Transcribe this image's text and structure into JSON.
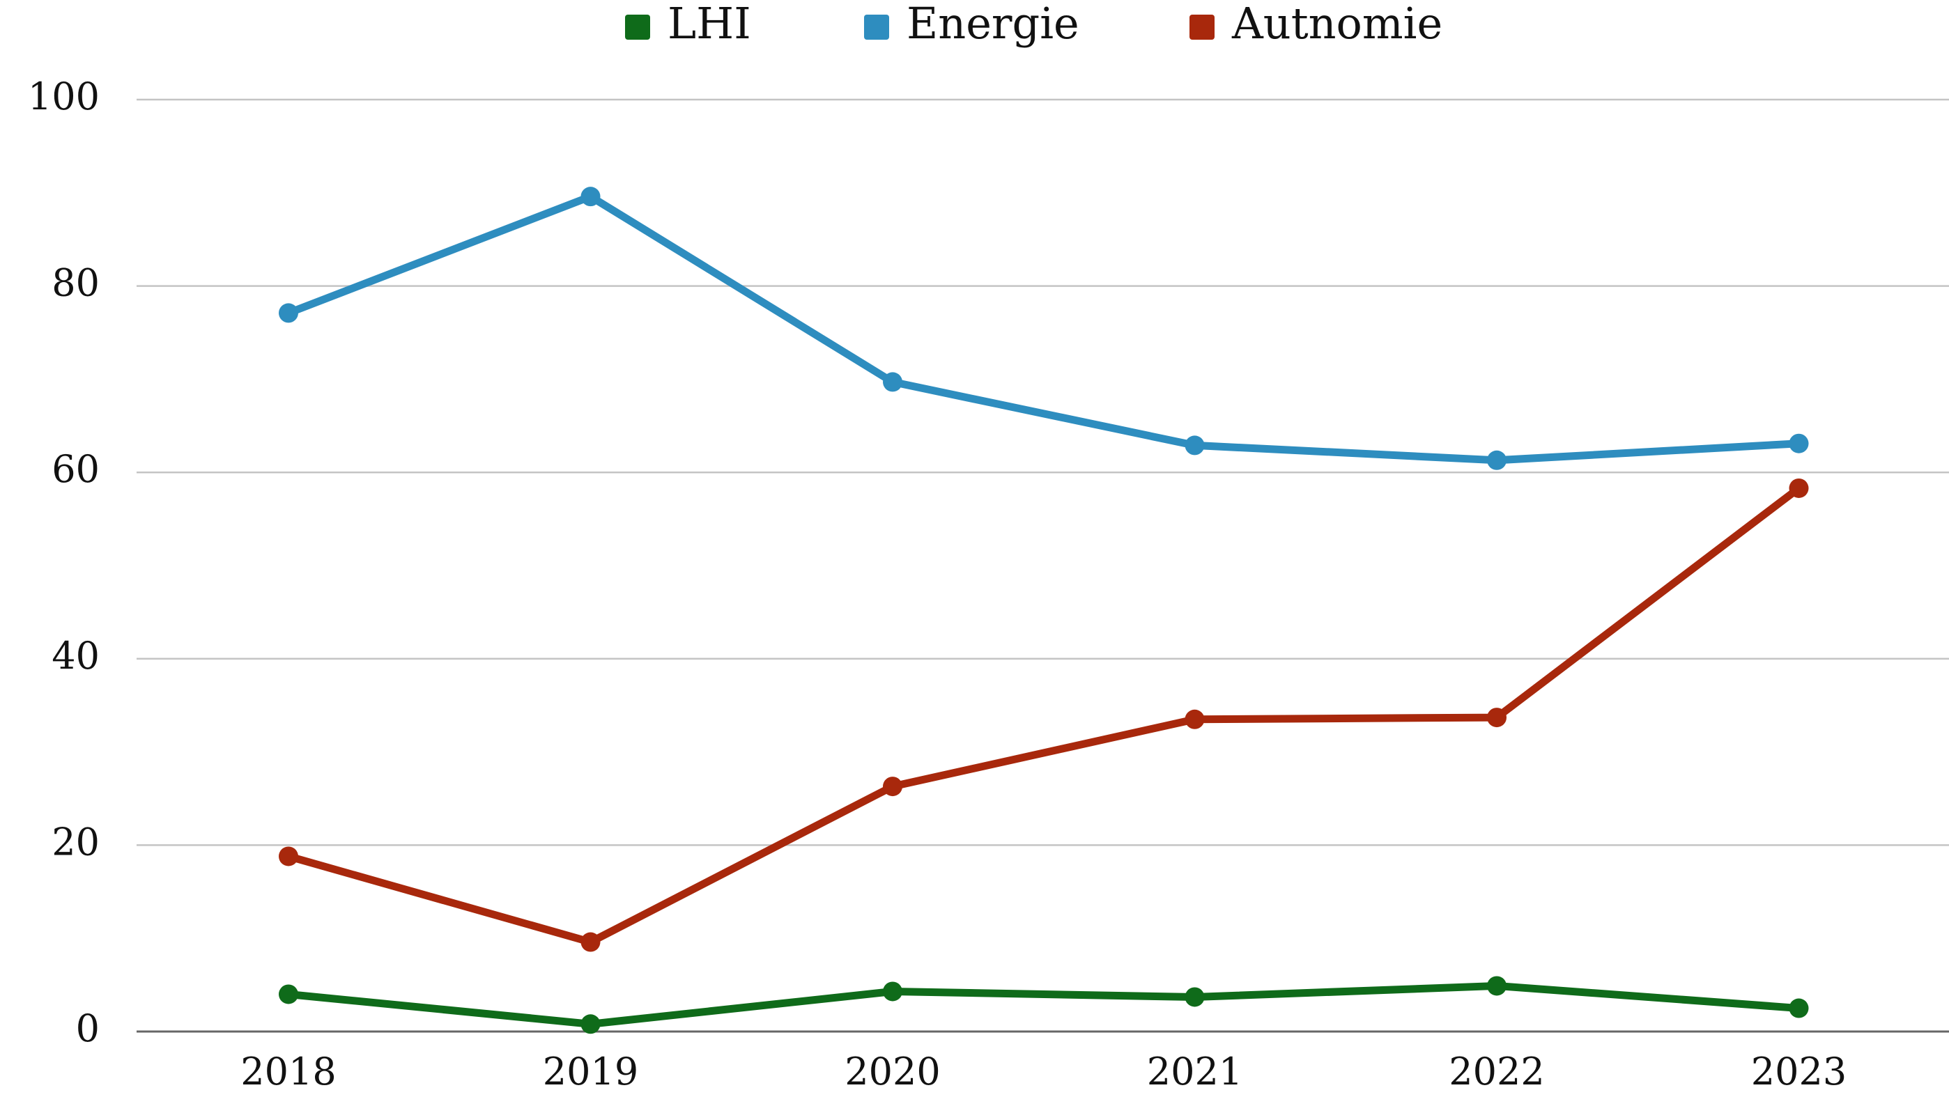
{
  "chart_data": {
    "type": "line",
    "categories": [
      "2018",
      "2019",
      "2020",
      "2021",
      "2022",
      "2023"
    ],
    "series": [
      {
        "name": "LHI",
        "color": "#0f6b1a",
        "values": [
          4.0,
          0.8,
          4.3,
          3.7,
          4.9,
          2.5
        ]
      },
      {
        "name": "Energie",
        "color": "#2e8dbf",
        "values": [
          77.1,
          89.6,
          69.7,
          62.9,
          61.3,
          63.1
        ]
      },
      {
        "name": "Autnomie",
        "color": "#a8280c",
        "values": [
          18.8,
          9.6,
          26.3,
          33.5,
          33.7,
          58.3
        ]
      }
    ],
    "ylim": [
      0,
      100
    ],
    "yticks": [
      0,
      20,
      40,
      60,
      80,
      100
    ],
    "grid": true,
    "legend": "top"
  }
}
